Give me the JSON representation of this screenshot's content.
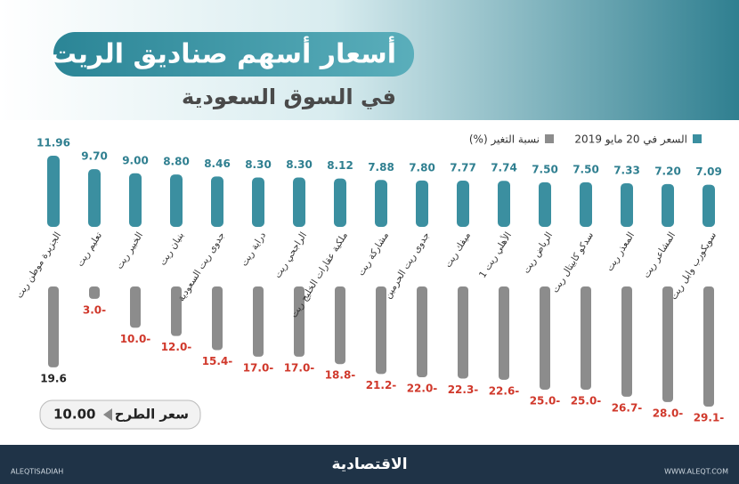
{
  "chart_data": {
    "type": "bar",
    "title": "أسعار أسهم صناديق الريت",
    "subtitle": "في السوق السعودية",
    "categories": [
      "الجزيرة موطن ريت",
      "تعليم ريت",
      "الخبير ريت",
      "بنيان ريت",
      "جدوى ريت السعودية",
      "دراية ريت",
      "الراجحي ريت",
      "ملكية عقارات الخليج ريت",
      "مشاركة ريت",
      "جدوى ريت الحرمين",
      "ميفك ريت",
      "الأهلي ريت 1",
      "الرياض ريت",
      "سدكو كابيتال ريت",
      "المعذر ريت",
      "المشاعر ريت",
      "سويكورب وابل ريت"
    ],
    "series": [
      {
        "name": "السعر في 20 مايو 2019",
        "color": "#3b8fa0",
        "values": [
          11.96,
          9.7,
          9.0,
          8.8,
          8.46,
          8.3,
          8.3,
          8.12,
          7.88,
          7.8,
          7.77,
          7.74,
          7.5,
          7.5,
          7.33,
          7.2,
          7.09
        ],
        "value_labels": [
          "11.96",
          "9.70",
          "9.00",
          "8.80",
          "8.46",
          "8.30",
          "8.30",
          "8.12",
          "7.88",
          "7.80",
          "7.77",
          "7.74",
          "7.50",
          "7.50",
          "7.33",
          "7.20",
          "7.09"
        ]
      },
      {
        "name": "نسبة التغير (%)",
        "color": "#8c8c8c",
        "values": [
          19.6,
          -3.0,
          -10.0,
          -12.0,
          -15.4,
          -17.0,
          -17.0,
          -18.8,
          -21.2,
          -22.0,
          -22.3,
          -22.6,
          -25.0,
          -25.0,
          -26.7,
          -28.0,
          -29.1
        ],
        "value_labels": [
          "19.6",
          "3.0-",
          "10.0-",
          "12.0-",
          "15.4-",
          "17.0-",
          "17.0-",
          "18.8-",
          "21.2-",
          "22.0-",
          "22.3-",
          "22.6-",
          "25.0-",
          "25.0-",
          "26.7-",
          "28.0-",
          "29.1-"
        ]
      }
    ],
    "offer_price": {
      "label": "سعر الطرح",
      "value": 10.0,
      "value_label": "10.00"
    }
  },
  "footer": {
    "brand": "الاقتصادية",
    "handle": "ALEQTISADIAH",
    "site": "WWW.ALEQT.COM"
  }
}
